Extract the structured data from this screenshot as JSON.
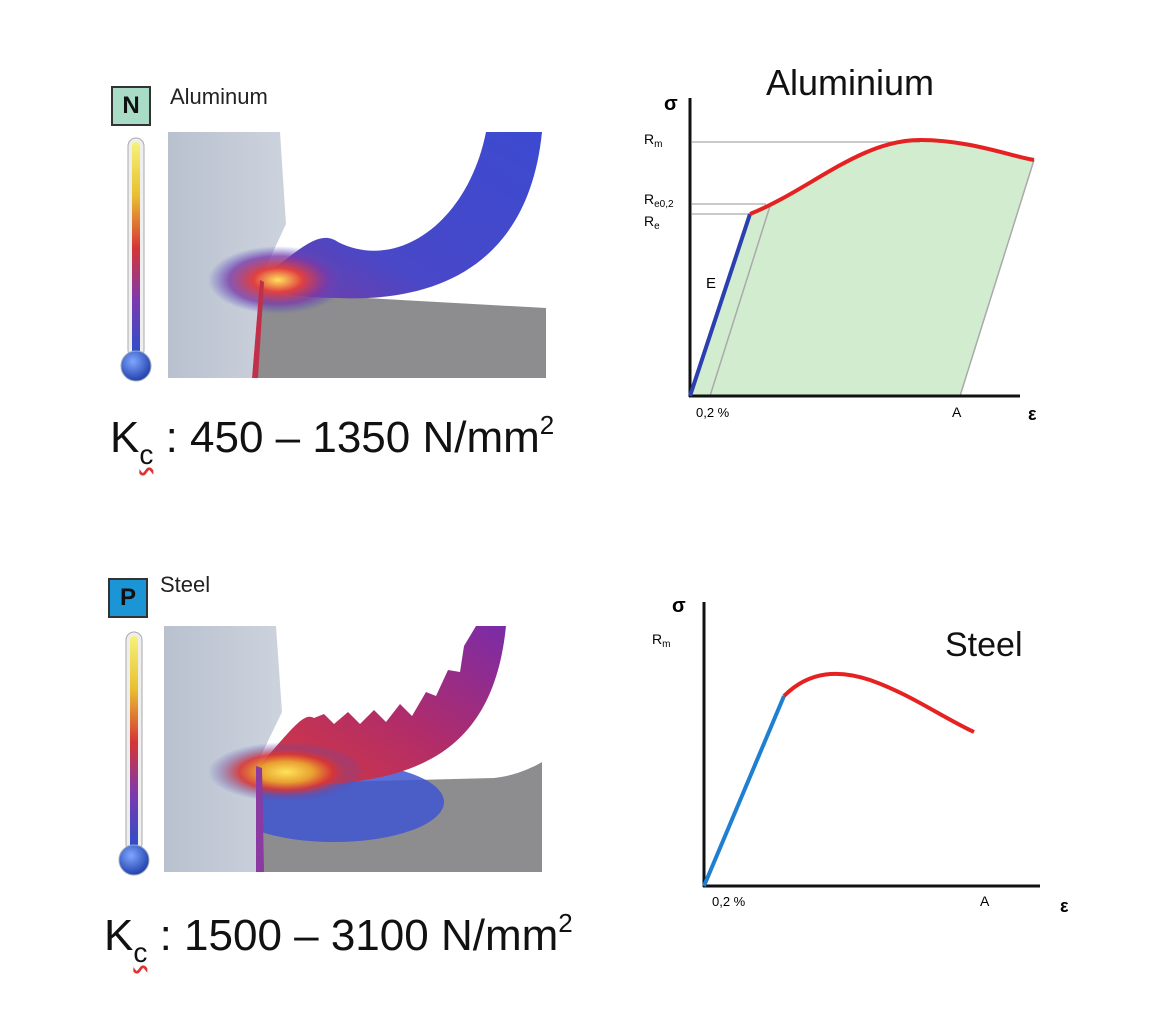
{
  "top": {
    "badge": "N",
    "badge_color": "#a8dcc6",
    "material_label": "Aluminum",
    "kc": {
      "symbol": "K",
      "subscript": "c",
      "range": " : 450 – 1350 N/mm",
      "superscript": "2"
    },
    "chart": {
      "title": "Aluminium",
      "y_axis_label": "σ",
      "x_axis_label": "ε",
      "labels": {
        "rm": "R",
        "rm_sub": "m",
        "re02": "R",
        "re02_sub": "e0,2",
        "re": "R",
        "re_sub": "e",
        "e": "E",
        "offset": "0,2 %",
        "a": "A"
      },
      "fill_color": "#d2eccf",
      "elastic_color": "#2b3fb0",
      "plastic_color": "#e52222"
    }
  },
  "bottom": {
    "badge": "P",
    "badge_color": "#1b95d6",
    "material_label": "Steel",
    "kc": {
      "symbol": "K",
      "subscript": "c",
      "range": " : 1500 – 3100 N/mm",
      "superscript": "2"
    },
    "chart": {
      "title": "Steel",
      "y_axis_label": "σ",
      "x_axis_label": "ε",
      "labels": {
        "rm": "R",
        "rm_sub": "m",
        "offset": "0,2 %",
        "a": "A"
      },
      "elastic_color": "#1f7fd0",
      "plastic_color": "#e52222"
    }
  }
}
